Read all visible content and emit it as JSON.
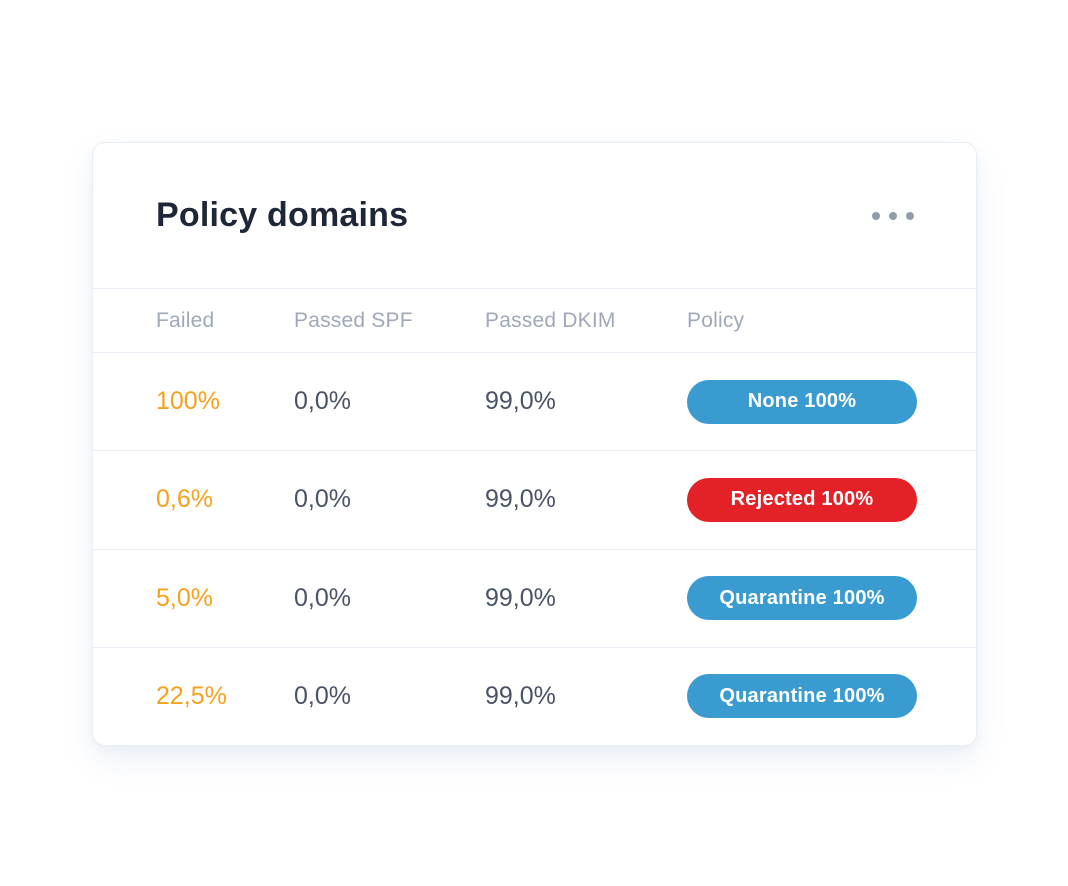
{
  "card": {
    "title": "Policy domains",
    "menu": {
      "icon": "ellipsis-icon"
    },
    "table": {
      "columns": [
        "Failed",
        "Passed SPF",
        "Passed DKIM",
        "Policy"
      ],
      "rows": [
        {
          "failed": "100%",
          "passed_spf": "0,0%",
          "passed_dkim": "99,0%",
          "policy": {
            "label": "None 100%",
            "color": "#3a9bd1"
          }
        },
        {
          "failed": "0,6%",
          "passed_spf": "0,0%",
          "passed_dkim": "99,0%",
          "policy": {
            "label": "Rejected 100%",
            "color": "#e32127"
          }
        },
        {
          "failed": "5,0%",
          "passed_spf": "0,0%",
          "passed_dkim": "99,0%",
          "policy": {
            "label": "Quarantine 100%",
            "color": "#3a9bd1"
          }
        },
        {
          "failed": "22,5%",
          "passed_spf": "0,0%",
          "passed_dkim": "99,0%",
          "policy": {
            "label": "Quarantine 100%",
            "color": "#3a9bd1"
          }
        }
      ]
    },
    "colors": {
      "title_text": "#1e2737",
      "header_text": "#9fa8ba",
      "value_text": "#4a5366",
      "failed_text": "#f5a11d",
      "pill_blue": "#3a9bd1",
      "pill_red": "#e32127",
      "divider": "#e9eff7",
      "card_border": "#e8eef6"
    }
  }
}
